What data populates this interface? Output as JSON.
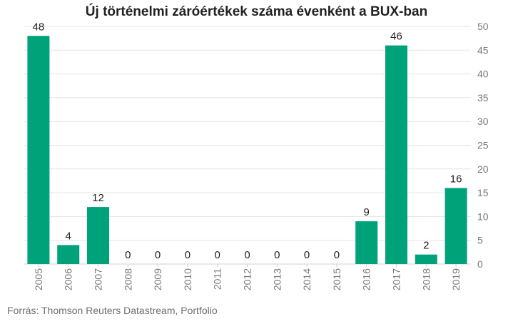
{
  "chart_data": {
    "type": "bar",
    "title": "Új történelmi záróértékek száma évenként a BUX-ban",
    "categories": [
      "2005",
      "2006",
      "2007",
      "2008",
      "2009",
      "2010",
      "2011",
      "2012",
      "2013",
      "2014",
      "2015",
      "2016",
      "2017",
      "2018",
      "2019"
    ],
    "values": [
      48,
      4,
      12,
      0,
      0,
      0,
      0,
      0,
      0,
      0,
      0,
      9,
      46,
      2,
      16
    ],
    "ylim": [
      0,
      50
    ],
    "yticks": [
      0,
      5,
      10,
      15,
      20,
      25,
      30,
      35,
      40,
      45,
      50
    ],
    "y_axis_side": "right",
    "xlabel": "",
    "ylabel": "",
    "grid": true,
    "data_labels": true,
    "bar_color": "#00a27a",
    "gridline_color": "#e3e3e3",
    "label_color": "#222222",
    "tick_color": "#7a7a7a"
  },
  "source": "Forrás: Thomson Reuters Datastream, Portfolio"
}
